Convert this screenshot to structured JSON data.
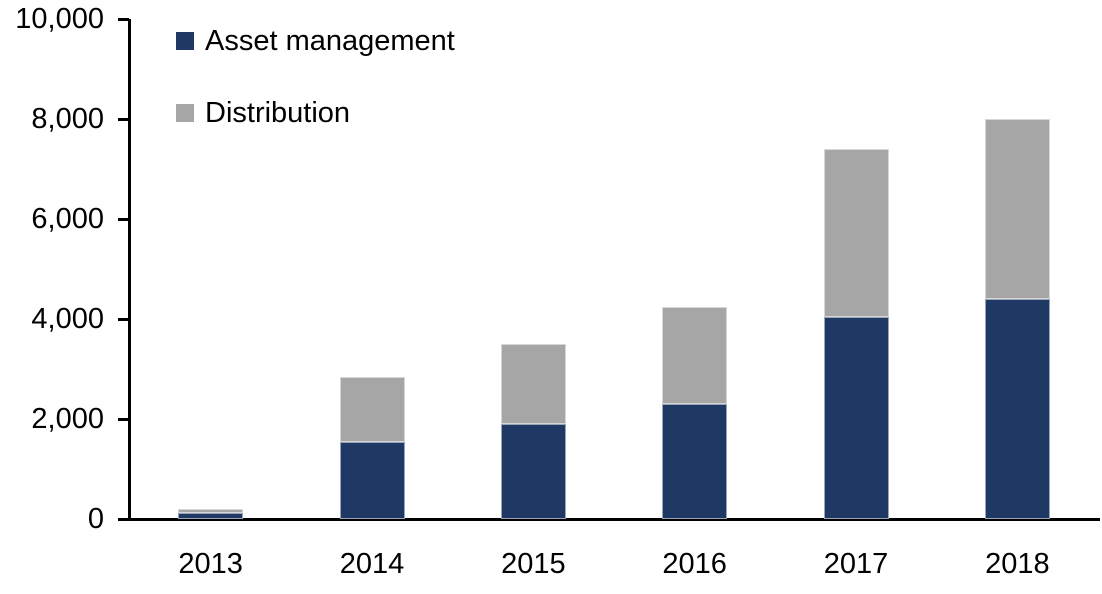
{
  "chart_data": {
    "type": "bar",
    "stacked": true,
    "title": "",
    "xlabel": "",
    "ylabel": "",
    "categories": [
      "2013",
      "2014",
      "2015",
      "2016",
      "2017",
      "2018"
    ],
    "series": [
      {
        "name": "Asset management",
        "color": "#1F3864",
        "values": [
          120,
          1550,
          1900,
          2300,
          4050,
          4400
        ]
      },
      {
        "name": "Distribution",
        "color": "#A6A6A6",
        "values": [
          80,
          1300,
          1600,
          1950,
          3350,
          3600
        ]
      }
    ],
    "totals": [
      200,
      2850,
      3500,
      4250,
      7400,
      8000
    ],
    "y_axis": {
      "min": 0,
      "max": 10000,
      "step": 2000,
      "tick_labels": [
        "0",
        "2,000",
        "4,000",
        "6,000",
        "8,000",
        "10,000"
      ]
    },
    "legend_position": "top-left",
    "grid": false,
    "axis_color": "#000000",
    "background_color": "#FFFFFF"
  }
}
